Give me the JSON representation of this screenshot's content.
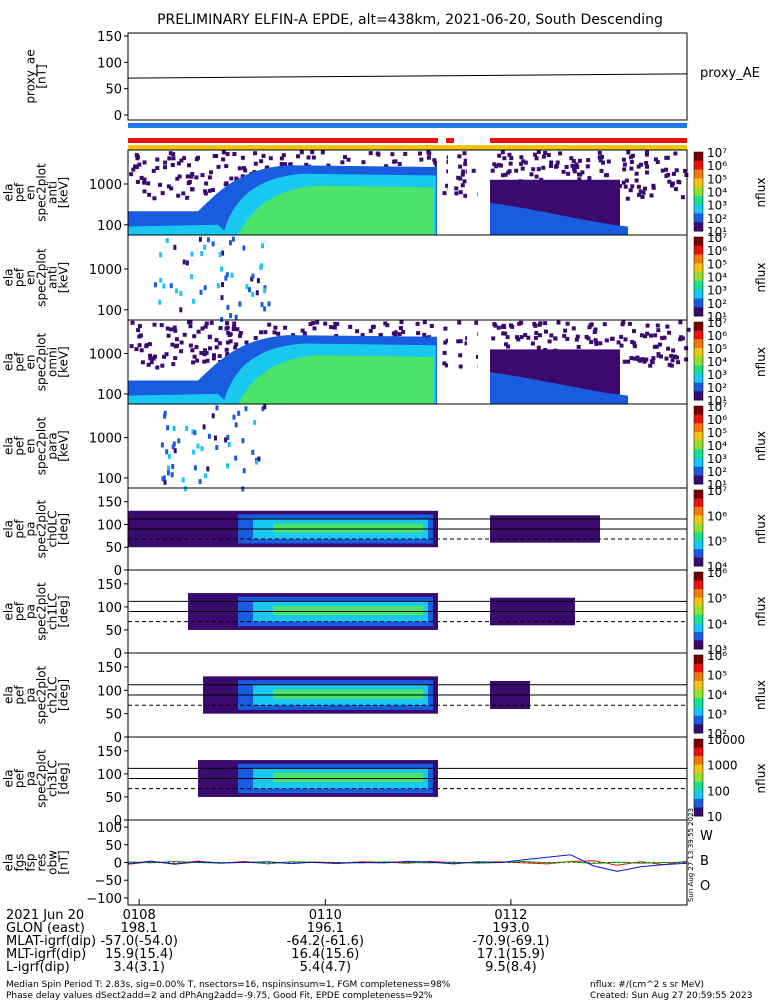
{
  "title": "PRELIMINARY ELFIN-A EPDE, alt=438km, 2021-06-20, South Descending",
  "colors": {
    "axis": "#000000",
    "bar_blue": "#1e7be6",
    "bar_red": "#e8130f",
    "bar_yellow": "#f2c412",
    "fill_dark": "#3a0a6e",
    "fill_blue": "#1a5ce0",
    "fill_cyan": "#18c8f0",
    "fill_green": "#4ce36b",
    "legend_w": "#e8130f",
    "legend_b": "#10b010",
    "legend_o": "#1010e8"
  },
  "panels": [
    {
      "id": "proxy_ae",
      "ylabel": [
        "proxy_ae",
        "[nT]"
      ],
      "right_label": "proxy_AE",
      "ticks": [
        "150",
        "100",
        "50",
        "0"
      ]
    },
    {
      "id": "spec_anti",
      "ylabel": [
        "ela",
        "pef",
        "en",
        "spec2plot",
        "anti",
        "[keV]"
      ],
      "ticks": [
        "1000",
        "100"
      ],
      "cb_label": "nflux",
      "cb_ticks": [
        "10⁷",
        "10⁶",
        "10⁵",
        "10⁴",
        "10³",
        "10²",
        "10¹"
      ]
    },
    {
      "id": "spec_perp",
      "ylabel": [
        "ela",
        "pef",
        "en",
        "spec2plot",
        "anti",
        "[keV]"
      ],
      "ticks": [
        "1000",
        "100"
      ],
      "cb_label": "nflux",
      "cb_ticks": [
        "10⁷",
        "10⁶",
        "10⁵",
        "10⁴",
        "10³",
        "10²",
        "10¹"
      ]
    },
    {
      "id": "spec_omni",
      "ylabel": [
        "ela",
        "pef",
        "en",
        "spec2plot",
        "omni",
        "[keV]"
      ],
      "ticks": [
        "1000",
        "100"
      ],
      "cb_label": "nflux",
      "cb_ticks": [
        "10⁷",
        "10⁶",
        "10⁵",
        "10⁴",
        "10³",
        "10²",
        "10¹"
      ]
    },
    {
      "id": "spec_para",
      "ylabel": [
        "ela",
        "pef",
        "en",
        "spec2plot",
        "para",
        "[keV]"
      ],
      "ticks": [
        "1000",
        "100"
      ],
      "cb_label": "nflux",
      "cb_ticks": [
        "10⁷",
        "10⁶",
        "10⁵",
        "10⁴",
        "10³",
        "10²",
        "10¹"
      ]
    },
    {
      "id": "pa_ch0",
      "ylabel": [
        "ela",
        "pef",
        "pa",
        "spec2plot",
        "ch0LC",
        "[deg]"
      ],
      "ticks": [
        "150",
        "100",
        "50",
        "0"
      ],
      "cb_label": "nflux",
      "cb_ticks": [
        "10⁷",
        "10⁶",
        "10⁵",
        "10⁴"
      ]
    },
    {
      "id": "pa_ch1",
      "ylabel": [
        "ela",
        "pef",
        "pa",
        "spec2plot",
        "ch1LC",
        "[deg]"
      ],
      "ticks": [
        "150",
        "100",
        "50",
        "0"
      ],
      "cb_label": "nflux",
      "cb_ticks": [
        "10⁶",
        "10⁵",
        "10⁴",
        "10³"
      ]
    },
    {
      "id": "pa_ch2",
      "ylabel": [
        "ela",
        "pef",
        "pa",
        "spec2plot",
        "ch2LC",
        "[deg]"
      ],
      "ticks": [
        "150",
        "100",
        "50",
        "0"
      ],
      "cb_label": "nflux",
      "cb_ticks": [
        "10⁶",
        "10⁵",
        "10⁴",
        "10³",
        "10²"
      ]
    },
    {
      "id": "pa_ch3",
      "ylabel": [
        "ela",
        "pef",
        "pa",
        "spec2plot",
        "ch3LC",
        "[deg]"
      ],
      "ticks": [
        "150",
        "100",
        "50",
        "0"
      ],
      "cb_label": "nflux",
      "cb_ticks": [
        "10000",
        "1000",
        "100",
        "10"
      ]
    },
    {
      "id": "fgs",
      "ylabel": [
        "ela",
        "fgs",
        "fsp",
        "res",
        "obw",
        "[nT]"
      ],
      "ticks": [
        "100",
        "50",
        "0",
        "−50",
        "−100"
      ],
      "legend": [
        "W",
        "B",
        "O"
      ]
    }
  ],
  "chart_data": [
    {
      "type": "line",
      "title": "PRELIMINARY ELFIN-A EPDE, alt=438km, 2021-06-20, South Descending",
      "xlabel": "",
      "ylabel": "proxy_ae [nT]",
      "ylim": [
        0,
        150
      ],
      "series": [
        {
          "name": "proxy_AE",
          "x": [
            "01:07:30",
            "01:13:30"
          ],
          "values": [
            70,
            78
          ]
        }
      ]
    },
    {
      "type": "heatmap",
      "ylabel": "ela pef en spec2plot anti [keV]",
      "ylim": [
        63,
        7000
      ],
      "log": true
    },
    {
      "type": "heatmap",
      "ylabel": "ela pef en spec2plot anti [keV]",
      "ylim": [
        63,
        7000
      ],
      "log": true
    },
    {
      "type": "heatmap",
      "ylabel": "ela pef en spec2plot omni [keV]",
      "ylim": [
        63,
        7000
      ],
      "log": true
    },
    {
      "type": "heatmap",
      "ylabel": "ela pef en spec2plot para [keV]",
      "ylim": [
        63,
        7000
      ],
      "log": true
    },
    {
      "type": "heatmap",
      "ylabel": "ela pef pa spec2plot ch0LC [deg]",
      "ylim": [
        0,
        180
      ]
    },
    {
      "type": "heatmap",
      "ylabel": "ela pef pa spec2plot ch1LC [deg]",
      "ylim": [
        0,
        180
      ]
    },
    {
      "type": "heatmap",
      "ylabel": "ela pef pa spec2plot ch2LC [deg]",
      "ylim": [
        0,
        180
      ]
    },
    {
      "type": "heatmap",
      "ylabel": "ela pef pa spec2plot ch3LC [deg]",
      "ylim": [
        0,
        180
      ]
    },
    {
      "type": "line",
      "ylabel": "ela fgs fsp res obw [nT]",
      "ylim": [
        -120,
        120
      ],
      "series": [
        {
          "name": "W",
          "values": [
            -5,
            2,
            -3,
            4,
            -2,
            3,
            -4,
            2,
            0,
            -3,
            2,
            1,
            -2,
            3,
            -1,
            0,
            2,
            -1,
            -4,
            3,
            5,
            -8,
            2,
            -6,
            4
          ]
        },
        {
          "name": "B",
          "values": [
            2,
            -1,
            3,
            0,
            -2,
            1,
            -3,
            2,
            1,
            0,
            -1,
            2,
            0,
            -1,
            1,
            -2,
            0,
            3,
            -1,
            2,
            -3,
            1,
            -2,
            0,
            1
          ]
        },
        {
          "name": "O",
          "values": [
            -3,
            4,
            -5,
            2,
            -1,
            0,
            2,
            -3,
            1,
            -2,
            0,
            -1,
            3,
            1,
            -4,
            2,
            0,
            8,
            15,
            22,
            -10,
            -25,
            -12,
            -6,
            -2
          ]
        }
      ]
    }
  ],
  "x_axis": {
    "ticks": [
      {
        "label": "0108",
        "pos": 0.02
      },
      {
        "label": "0110",
        "pos": 0.353
      },
      {
        "label": "0112",
        "pos": 0.685
      }
    ],
    "rows": [
      {
        "label": "2021 Jun 20",
        "values": [
          "0108",
          "0110",
          "0112"
        ]
      },
      {
        "label": "GLON (east)",
        "values": [
          "198.1",
          "196.1",
          "193.0"
        ]
      },
      {
        "label": "MLAT-igrf(dip)",
        "values": [
          "-57.0(-54.0)",
          "-64.2(-61.6)",
          "-70.9(-69.1)"
        ]
      },
      {
        "label": "MLT-igrf(dip)",
        "values": [
          "15.9(15.4)",
          "16.4(15.6)",
          "17.1(15.9)"
        ]
      },
      {
        "label": "L-igrf(dip)",
        "values": [
          "3.4(3.1)",
          "5.4(4.7)",
          "9.5(8.4)"
        ]
      }
    ]
  },
  "footer": {
    "line1": "Median Spin Period T: 2.83s, sig=0.00% T, nsectors=16, nspinsinsum=1, FGM completeness=98%",
    "line2": "Phase delay values dSect2add=2 and dPhAng2add=-9.75, Good Fit, EPDE completeness=92%",
    "right1": "nflux: #/(cm^2 s sr MeV)",
    "right2": "Created: Sun Aug 27 20:59:55 2023"
  },
  "vertical_note": "Sun Aug 27 13:39:55 2023"
}
